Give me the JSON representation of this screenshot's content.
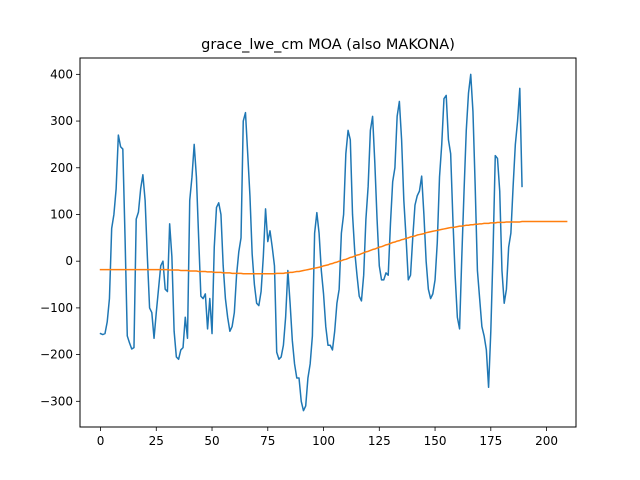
{
  "chart_data": {
    "type": "line",
    "title": "grace_lwe_cm MOA (also MAKONA)",
    "xlabel": "",
    "ylabel": "",
    "xlim": [
      -9.2,
      213.2
    ],
    "ylim": [
      -355,
      435
    ],
    "x_ticks": [
      0,
      25,
      50,
      75,
      100,
      125,
      150,
      175,
      200
    ],
    "y_ticks": [
      -300,
      -200,
      -100,
      0,
      100,
      200,
      300,
      400
    ],
    "grid": false,
    "legend": "none",
    "series": [
      {
        "color": "#1f77b4",
        "values": [
          -155,
          -157,
          -155,
          -130,
          -80,
          70,
          100,
          155,
          270,
          245,
          240,
          50,
          -160,
          -175,
          -188,
          -185,
          90,
          105,
          155,
          185,
          130,
          10,
          -100,
          -110,
          -165,
          -110,
          -60,
          -10,
          0,
          -60,
          -65,
          80,
          10,
          -150,
          -205,
          -210,
          -190,
          -185,
          -120,
          -165,
          130,
          180,
          250,
          180,
          50,
          -75,
          -80,
          -70,
          -145,
          -80,
          -155,
          30,
          115,
          125,
          100,
          -10,
          -80,
          -120,
          -150,
          -140,
          -110,
          -30,
          20,
          50,
          300,
          318,
          230,
          140,
          15,
          -50,
          -90,
          -95,
          -65,
          10,
          112,
          42,
          65,
          30,
          -10,
          -195,
          -210,
          -205,
          -180,
          -120,
          -20,
          -90,
          -170,
          -220,
          -250,
          -250,
          -300,
          -320,
          -310,
          -250,
          -220,
          -160,
          60,
          104,
          60,
          -20,
          -70,
          -140,
          -180,
          -180,
          -190,
          -150,
          -90,
          -60,
          60,
          100,
          230,
          280,
          260,
          100,
          20,
          -30,
          -75,
          -85,
          -30,
          90,
          160,
          280,
          310,
          210,
          90,
          -10,
          -40,
          -40,
          -25,
          -30,
          80,
          170,
          200,
          310,
          342,
          260,
          130,
          50,
          -40,
          -30,
          50,
          120,
          140,
          150,
          182,
          100,
          0,
          -60,
          -80,
          -70,
          -40,
          40,
          180,
          250,
          348,
          355,
          260,
          230,
          90,
          -30,
          -120,
          -145,
          10,
          150,
          280,
          360,
          400,
          320,
          160,
          -20,
          -80,
          -140,
          -160,
          -190,
          -270,
          -150,
          20,
          226,
          220,
          150,
          -20,
          -90,
          -60,
          30,
          60,
          160,
          250,
          300,
          370,
          160
        ]
      },
      {
        "color": "#ff7f0e",
        "values": [
          -18,
          -18,
          -18,
          -18,
          -18,
          -18,
          -18,
          -18,
          -18,
          -18,
          -18,
          -18,
          -18,
          -18,
          -18,
          -18,
          -18,
          -18,
          -18,
          -18,
          -18,
          -18,
          -18,
          -18,
          -18,
          -18,
          -18,
          -18,
          -18,
          -18,
          -18,
          -19,
          -19,
          -19,
          -19,
          -19,
          -20,
          -20,
          -20,
          -20,
          -21,
          -21,
          -21,
          -21,
          -22,
          -22,
          -22,
          -22,
          -23,
          -23,
          -23,
          -24,
          -24,
          -24,
          -24,
          -25,
          -25,
          -25,
          -25,
          -26,
          -26,
          -26,
          -26,
          -26,
          -27,
          -27,
          -27,
          -27,
          -27,
          -27,
          -27,
          -27,
          -27,
          -27,
          -27,
          -27,
          -27,
          -27,
          -27,
          -26,
          -26,
          -26,
          -26,
          -25,
          -25,
          -24,
          -24,
          -23,
          -22,
          -22,
          -21,
          -20,
          -19,
          -18,
          -17,
          -16,
          -15,
          -14,
          -13,
          -12,
          -10,
          -9,
          -8,
          -6,
          -5,
          -3,
          -2,
          0,
          1,
          3,
          4,
          6,
          8,
          9,
          11,
          13,
          14,
          16,
          18,
          20,
          21,
          23,
          25,
          26,
          28,
          30,
          31,
          33,
          35,
          36,
          38,
          40,
          41,
          43,
          44,
          46,
          47,
          49,
          50,
          52,
          53,
          54,
          56,
          57,
          58,
          59,
          61,
          62,
          63,
          64,
          65,
          66,
          67,
          68,
          69,
          70,
          71,
          72,
          72,
          73,
          74,
          75,
          75,
          76,
          77,
          77,
          78,
          78,
          79,
          79,
          80,
          80,
          81,
          81,
          81,
          82,
          82,
          82,
          83,
          83,
          83,
          83,
          84,
          84,
          84,
          84,
          84,
          84,
          84,
          85,
          85,
          85,
          85,
          85,
          85,
          85,
          85,
          85,
          85,
          85,
          85,
          85,
          85,
          85,
          85,
          85,
          85,
          85,
          85,
          85
        ]
      }
    ]
  }
}
